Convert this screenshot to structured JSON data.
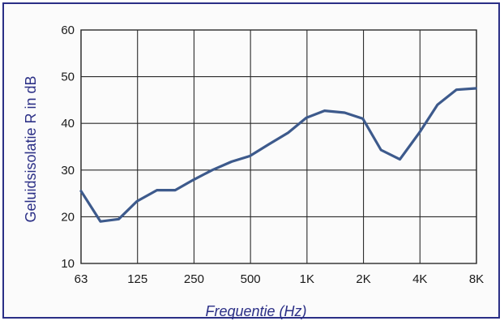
{
  "chart_data": {
    "type": "line",
    "xlabel": "Frequentie (Hz)",
    "ylabel": "Geluidsisolatie R in dB",
    "title": "",
    "categories": [
      "63",
      "125",
      "250",
      "500",
      "1K",
      "2K",
      "4K",
      "8K"
    ],
    "yticks": [
      "10",
      "20",
      "30",
      "40",
      "50",
      "60"
    ],
    "ylim": [
      10,
      60
    ],
    "grid": true,
    "x_scale": "log",
    "series": [
      {
        "color": "#3d5a8c",
        "x": [
          63,
          80,
          100,
          125,
          160,
          200,
          250,
          315,
          400,
          500,
          630,
          800,
          1000,
          1250,
          1600,
          2000,
          2500,
          3150,
          4000,
          5000,
          6300,
          8000
        ],
        "values": [
          25.5,
          19,
          19.5,
          23.3,
          25.7,
          25.7,
          27.9,
          30,
          31.8,
          33,
          35.5,
          38,
          41.2,
          42.7,
          42.3,
          41,
          34.3,
          32.3,
          38,
          44,
          47.2,
          47.5
        ]
      }
    ]
  }
}
